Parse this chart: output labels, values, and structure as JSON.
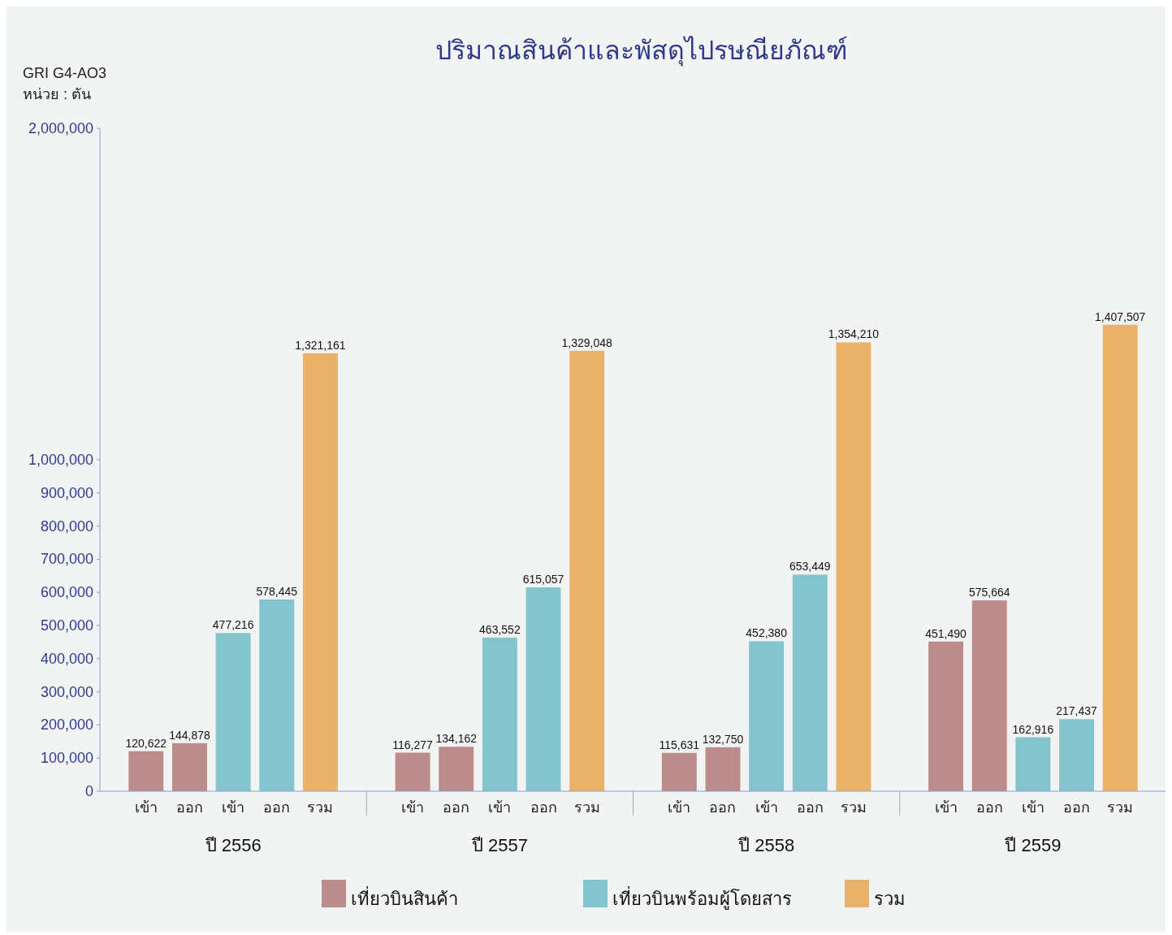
{
  "chart_data": {
    "type": "bar",
    "title": "ปริมาณสินค้าและพัสดุไปรษณียภัณฑ์",
    "subtitle": "GRI G4-AO3",
    "ylabel": "หน่วย : ตัน",
    "categories": [
      "เข้า",
      "ออก",
      "เข้า",
      "ออก",
      "รวม",
      "เข้า",
      "ออก",
      "เข้า",
      "ออก",
      "รวม",
      "เข้า",
      "ออก",
      "เข้า",
      "ออก",
      "รวม",
      "เข้า",
      "ออก",
      "เข้า",
      "ออก",
      "รวม"
    ],
    "series": [
      {
        "name": "เที่ยวบินสินค้า",
        "color": "#bc8c8c",
        "values": [
          120622,
          144878,
          null,
          null,
          null,
          116277,
          134162,
          null,
          null,
          null,
          115631,
          132750,
          null,
          null,
          null,
          451490,
          575664,
          null,
          null,
          null
        ],
        "value_labels": [
          "120,622",
          "144,878",
          null,
          null,
          null,
          "116,277",
          "134,162",
          null,
          null,
          null,
          "115,631",
          "132,750",
          null,
          null,
          null,
          "451,490",
          "575,664",
          null,
          null,
          null
        ]
      },
      {
        "name": "เที่ยวบินพร้อมผู้โดยสาร",
        "color": "#84c4cc",
        "values": [
          null,
          null,
          477216,
          578445,
          null,
          null,
          null,
          463552,
          615057,
          null,
          null,
          null,
          452380,
          653449,
          null,
          null,
          null,
          162916,
          217437,
          null
        ],
        "value_labels": [
          null,
          null,
          "477,216",
          "578,445",
          null,
          null,
          null,
          "463,552",
          "615,057",
          null,
          null,
          null,
          "452,380",
          "653,449",
          null,
          null,
          null,
          "162,916",
          "217,437",
          null
        ]
      },
      {
        "name": "รวม",
        "color": "#eab268",
        "values": [
          null,
          null,
          null,
          null,
          1321161,
          null,
          null,
          null,
          null,
          1329048,
          null,
          null,
          null,
          null,
          1354210,
          null,
          null,
          null,
          null,
          1407507
        ],
        "value_labels": [
          null,
          null,
          null,
          null,
          "1,321,161",
          null,
          null,
          null,
          null,
          "1,329,048",
          null,
          null,
          null,
          null,
          "1,354,210",
          null,
          null,
          null,
          null,
          "1,407,507"
        ]
      }
    ],
    "annotations": [
      "ปี 2556",
      "ปี 2557",
      "ปี 2558",
      "ปี 2559"
    ],
    "ylim": [
      0,
      2000000
    ],
    "yticks": [
      {
        "value": 0,
        "label": "0"
      },
      {
        "value": 100000,
        "label": "100,000"
      },
      {
        "value": 200000,
        "label": "200,000"
      },
      {
        "value": 300000,
        "label": "300,000"
      },
      {
        "value": 400000,
        "label": "400,000"
      },
      {
        "value": 500000,
        "label": "500,000"
      },
      {
        "value": 600000,
        "label": "600,000"
      },
      {
        "value": 700000,
        "label": "700,000"
      },
      {
        "value": 800000,
        "label": "800,000"
      },
      {
        "value": 900000,
        "label": "900,000"
      },
      {
        "value": 1000000,
        "label": "1,000,000"
      },
      {
        "value": 2000000,
        "label": "2,000,000"
      }
    ],
    "legend": "bottom",
    "grid": false
  }
}
